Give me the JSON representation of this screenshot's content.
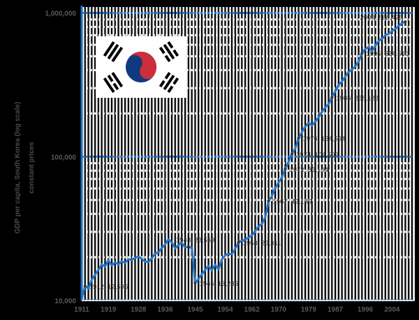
{
  "chart_data": {
    "type": "line",
    "title": "",
    "ylabel_lines": [
      "GDP per capita, South Korea (log scale)",
      "constant prices"
    ],
    "xlabel": "",
    "yscale": "log",
    "ylim": [
      10000,
      1100000
    ],
    "xlim": [
      1911,
      2010
    ],
    "y_ticks": [
      {
        "value": 10000,
        "label": "10,000"
      },
      {
        "value": 100000,
        "label": "100,000"
      },
      {
        "value": 1000000,
        "label": "1,000,000"
      }
    ],
    "x_ticks": [
      "1911",
      "1919",
      "1928",
      "1936",
      "1945",
      "1954",
      "1962",
      "1970",
      "1979",
      "1987",
      "1996",
      "2004"
    ],
    "series": [
      {
        "name": "South Korea",
        "color": "#1f77d0",
        "points": [
          [
            1911,
            10300
          ],
          [
            1912,
            12595
          ],
          [
            1913,
            12100
          ],
          [
            1914,
            13900
          ],
          [
            1915,
            15100
          ],
          [
            1916,
            16300
          ],
          [
            1917,
            17800
          ],
          [
            1918,
            17200
          ],
          [
            1919,
            19000
          ],
          [
            1920,
            17500
          ],
          [
            1921,
            18400
          ],
          [
            1922,
            17800
          ],
          [
            1923,
            18700
          ],
          [
            1924,
            18300
          ],
          [
            1925,
            19300
          ],
          [
            1926,
            19100
          ],
          [
            1927,
            19800
          ],
          [
            1928,
            20200
          ],
          [
            1929,
            19500
          ],
          [
            1930,
            18600
          ],
          [
            1931,
            18500
          ],
          [
            1932,
            19600
          ],
          [
            1933,
            21200
          ],
          [
            1934,
            21600
          ],
          [
            1935,
            23200
          ],
          [
            1936,
            24500
          ],
          [
            1937,
            26600
          ],
          [
            1938,
            25400
          ],
          [
            1939,
            23000
          ],
          [
            1940,
            24300
          ],
          [
            1941,
            25200
          ],
          [
            1942,
            23400
          ],
          [
            1943,
            23569
          ],
          [
            1944,
            23200
          ],
          [
            1945,
            13236
          ],
          [
            1946,
            14100
          ],
          [
            1947,
            15200
          ],
          [
            1948,
            16300
          ],
          [
            1949,
            17400
          ],
          [
            1950,
            16200
          ],
          [
            1951,
            17700
          ],
          [
            1952,
            16400
          ],
          [
            1953,
            19300
          ],
          [
            1954,
            20600
          ],
          [
            1955,
            21100
          ],
          [
            1956,
            21000
          ],
          [
            1957,
            22900
          ],
          [
            1958,
            25311
          ],
          [
            1959,
            26100
          ],
          [
            1960,
            26500
          ],
          [
            1961,
            27400
          ],
          [
            1962,
            28300
          ],
          [
            1963,
            30400
          ],
          [
            1964,
            32700
          ],
          [
            1965,
            34000
          ],
          [
            1966,
            37900
          ],
          [
            1967,
            49185
          ],
          [
            1968,
            53000
          ],
          [
            1969,
            60500
          ],
          [
            1970,
            66000
          ],
          [
            1971,
            72000
          ],
          [
            1972,
            82104
          ],
          [
            1973,
            92000
          ],
          [
            1974,
            104509
          ],
          [
            1975,
            114000
          ],
          [
            1976,
            134564
          ],
          [
            1977,
            148000
          ],
          [
            1978,
            162000
          ],
          [
            1979,
            172000
          ],
          [
            1980,
            165000
          ],
          [
            1981,
            175000
          ],
          [
            1982,
            188000
          ],
          [
            1983,
            205000
          ],
          [
            1984,
            220000
          ],
          [
            1985,
            232000
          ],
          [
            1986,
            258122
          ],
          [
            1987,
            285000
          ],
          [
            1988,
            315000
          ],
          [
            1989,
            334000
          ],
          [
            1990,
            360000
          ],
          [
            1991,
            388000
          ],
          [
            1992,
            404000
          ],
          [
            1993,
            425000
          ],
          [
            1994,
            460000
          ],
          [
            1995,
            524510
          ],
          [
            1996,
            560000
          ],
          [
            1997,
            580000
          ],
          [
            1998,
            540000
          ],
          [
            1999,
            590000
          ],
          [
            2000,
            640000
          ],
          [
            2001,
            660000
          ],
          [
            2002,
            700000
          ],
          [
            2003,
            715000
          ],
          [
            2004,
            745000
          ],
          [
            2005,
            775000
          ],
          [
            2006,
            810000
          ],
          [
            2007,
            850000
          ],
          [
            2008,
            868425
          ]
        ]
      }
    ],
    "annotations": [
      {
        "year": 1912,
        "value": 12595,
        "label": "1912, 12,595"
      },
      {
        "year": 1943,
        "value": 23569,
        "label": "1943, 23,569"
      },
      {
        "year": 1945,
        "value": 13236,
        "label": "1945, 13,236"
      },
      {
        "year": 1958,
        "value": 25311,
        "label": "1958, 25,311"
      },
      {
        "year": 1967,
        "value": 49185,
        "label": "1967, 49,185"
      },
      {
        "year": 1972,
        "value": 82104,
        "label": "1972, 82,104"
      },
      {
        "year": 1974,
        "value": 104509,
        "label": "1974, 104,509"
      },
      {
        "year": 1976,
        "value": 134564,
        "label": "1976, 134,564"
      },
      {
        "year": 1986,
        "value": 258122,
        "label": "1986, 258,122"
      },
      {
        "year": 1995,
        "value": 524510,
        "label": "1995, 524,510"
      },
      {
        "year": 2008,
        "value": 868425,
        "label": "2008, 868,425"
      }
    ],
    "grid": {
      "x": true,
      "y": true
    },
    "legend": "none",
    "inset_image": "flag-of-south-korea"
  },
  "colors": {
    "background": "#000000",
    "plot_bg": "#eeeeee",
    "line": "#1f77d0",
    "axis": "#1f6fc0",
    "grid_x": "#000000",
    "flag_red": "#cd2e3a",
    "flag_blue": "#0f3a7f"
  }
}
